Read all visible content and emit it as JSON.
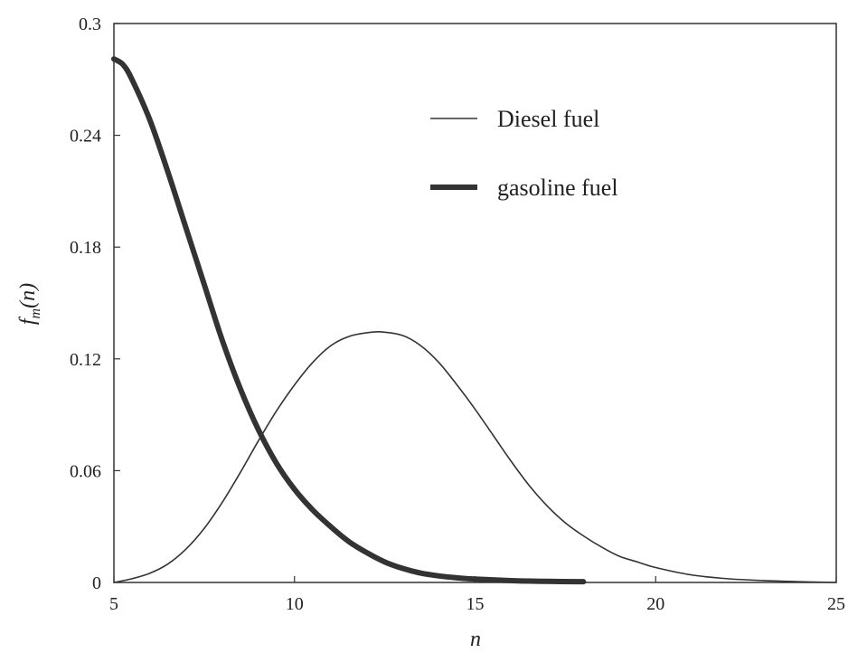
{
  "chart_data": {
    "type": "line",
    "xlabel": "n",
    "ylabel": "f_m(n)",
    "xlim": [
      5,
      25
    ],
    "ylim": [
      0,
      0.3
    ],
    "xticks": [
      5,
      10,
      15,
      20,
      25
    ],
    "xtick_labels": [
      "5",
      "10",
      "15",
      "20",
      "25"
    ],
    "yticks": [
      0,
      0.06,
      0.12,
      0.18,
      0.24,
      0.3
    ],
    "ytick_labels": [
      "0",
      "0.06",
      "0.12",
      "0.18",
      "0.24",
      "0.3"
    ],
    "grid": false,
    "legend_position": "top-right",
    "series": [
      {
        "name": "Diesel fuel",
        "color": "#333333",
        "style": "thin",
        "x": [
          5,
          5.5,
          6,
          6.5,
          7,
          7.5,
          8,
          8.5,
          9,
          9.5,
          10,
          10.5,
          11,
          11.5,
          12,
          12.4,
          13,
          13.5,
          14,
          14.5,
          15,
          15.5,
          16,
          16.5,
          17,
          17.5,
          18,
          18.5,
          19,
          19.5,
          20,
          21,
          22,
          23,
          24,
          25
        ],
        "y": [
          0.0,
          0.002,
          0.005,
          0.01,
          0.018,
          0.029,
          0.043,
          0.059,
          0.076,
          0.092,
          0.106,
          0.118,
          0.127,
          0.132,
          0.134,
          0.1345,
          0.1325,
          0.127,
          0.118,
          0.106,
          0.093,
          0.079,
          0.065,
          0.052,
          0.041,
          0.032,
          0.025,
          0.019,
          0.014,
          0.011,
          0.008,
          0.004,
          0.002,
          0.001,
          0.0004,
          0.0
        ]
      },
      {
        "name": "gasoline fuel",
        "color": "#333333",
        "style": "thick",
        "x": [
          5,
          5.25,
          5.5,
          6,
          6.5,
          7,
          7.5,
          8,
          8.5,
          9,
          9.5,
          10,
          10.5,
          11,
          11.5,
          12,
          12.5,
          13,
          13.5,
          14,
          14.5,
          15,
          16,
          17,
          18
        ],
        "y": [
          0.281,
          0.278,
          0.27,
          0.248,
          0.22,
          0.19,
          0.16,
          0.13,
          0.104,
          0.082,
          0.064,
          0.05,
          0.039,
          0.03,
          0.022,
          0.016,
          0.011,
          0.0075,
          0.005,
          0.0035,
          0.0025,
          0.0018,
          0.001,
          0.0006,
          0.0004
        ]
      }
    ]
  }
}
